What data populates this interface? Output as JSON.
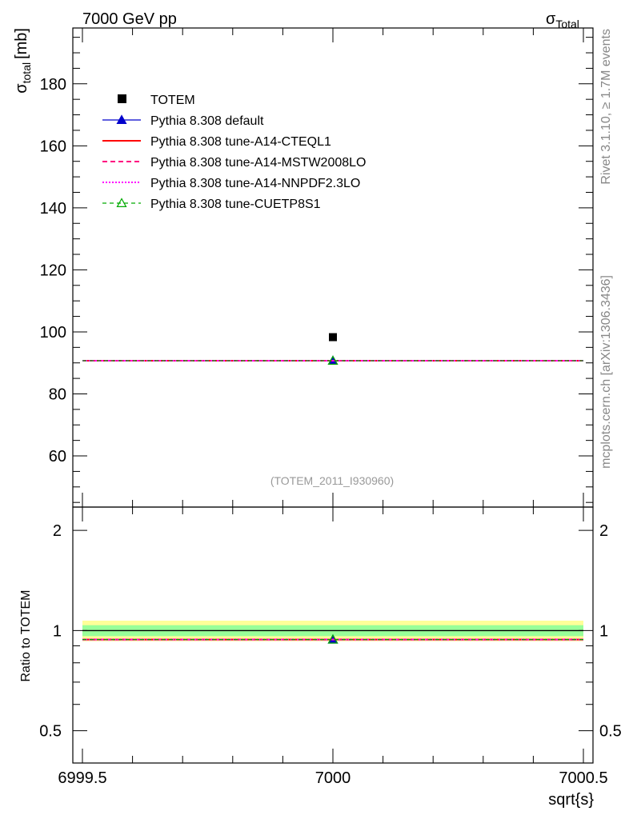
{
  "header": {
    "left_title": "7000 GeV pp",
    "right_title_main": "σ",
    "right_title_sub": "Total"
  },
  "side_labels": {
    "rivet": "Rivet 3.1.10, ≥ 1.7M events",
    "source": "mcplots.cern.ch [arXiv:1306.3436]"
  },
  "watermark": "(TOTEM_2011_I930960)",
  "chart_data": [
    {
      "type": "scatter",
      "panel": "main",
      "ylabel_main": "σ",
      "ylabel_sub": "total",
      "ylabel_unit": "[mb]",
      "xlim": [
        6999.5,
        7000.5
      ],
      "ylim": [
        43.5,
        198
      ],
      "ytick_values": [
        60,
        80,
        100,
        120,
        140,
        160,
        180
      ],
      "ytick_labels": [
        "60",
        "80",
        "100",
        "120",
        "140",
        "160",
        "180"
      ],
      "grid": false,
      "legend_position": "top-left",
      "series": [
        {
          "name": "TOTEM",
          "style": "square",
          "color": "#000000",
          "x": [
            7000
          ],
          "y": [
            98.3
          ]
        },
        {
          "name": "Pythia 8.308 default",
          "style": "triangle",
          "color": "#0000cc",
          "x": [
            7000
          ],
          "y": [
            90.7
          ]
        },
        {
          "name": "Pythia 8.308 tune-A14-CTEQL1",
          "style": "solid",
          "color": "#ff0000",
          "x": [
            7000
          ],
          "y": [
            90.7
          ]
        },
        {
          "name": "Pythia 8.308 tune-A14-MSTW2008LO",
          "style": "dashed",
          "color": "#ff0080",
          "x": [
            7000
          ],
          "y": [
            90.7
          ]
        },
        {
          "name": "Pythia 8.308 tune-A14-NNPDF2.3LO",
          "style": "dotted",
          "color": "#ff00ff",
          "x": [
            7000
          ],
          "y": [
            90.7
          ]
        },
        {
          "name": "Pythia 8.308 tune-CUETP8S1",
          "style": "dashed-open-triangle",
          "color": "#00aa00",
          "x": [
            7000
          ],
          "y": [
            90.7
          ]
        }
      ]
    },
    {
      "type": "scatter",
      "panel": "ratio",
      "ylabel": "Ratio to TOTEM",
      "xlabel": "sqrt{s}",
      "xlim": [
        6999.5,
        7000.5
      ],
      "ylim": [
        0.4,
        2.35
      ],
      "log_y": true,
      "ytick_values": [
        0.5,
        1,
        2
      ],
      "ytick_labels": [
        "0.5",
        "1",
        "2"
      ],
      "xtick_values": [
        6999.5,
        7000,
        7000.5
      ],
      "xtick_labels": [
        "6999.5",
        "7000",
        "7000.5"
      ],
      "reference_band": {
        "inner": [
          0.962,
          1.038
        ],
        "outer": [
          0.929,
          1.071
        ]
      },
      "series": [
        {
          "name": "Pythia 8.308 default",
          "x": [
            7000
          ],
          "y": [
            0.94
          ]
        },
        {
          "name": "Pythia 8.308 tune-A14-CTEQL1",
          "x": [
            7000
          ],
          "y": [
            0.94
          ]
        },
        {
          "name": "Pythia 8.308 tune-A14-MSTW2008LO",
          "x": [
            7000
          ],
          "y": [
            0.94
          ]
        },
        {
          "name": "Pythia 8.308 tune-A14-NNPDF2.3LO",
          "x": [
            7000
          ],
          "y": [
            0.94
          ]
        },
        {
          "name": "Pythia 8.308 tune-CUETP8S1",
          "x": [
            7000
          ],
          "y": [
            0.94
          ]
        }
      ]
    }
  ]
}
